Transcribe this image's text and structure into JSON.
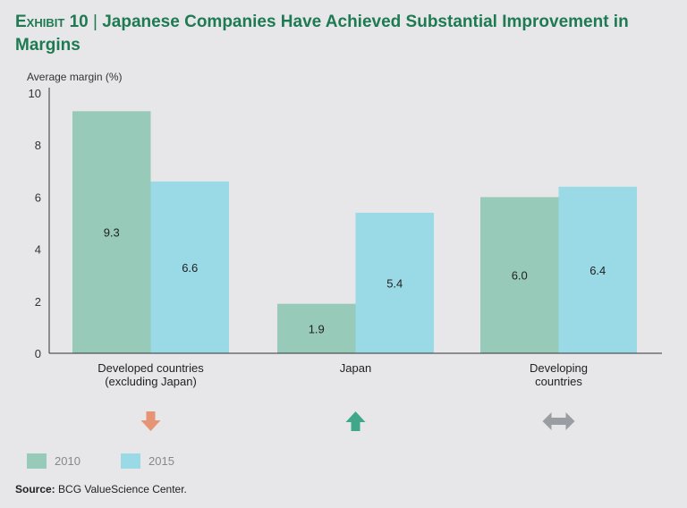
{
  "title": {
    "exhibit": "Exhibit 10",
    "separator": "|",
    "text": "Japanese Companies Have Achieved Substantial Improvement in Margins"
  },
  "source": {
    "label": "Source:",
    "text": "BCG ValueScience Center."
  },
  "colors": {
    "title": "#1d7a52",
    "s2010": "#97cab8",
    "s2015": "#9ad9e6",
    "down": "#e59575",
    "up": "#3fa88a",
    "flat": "#9a9ea3"
  },
  "chart_data": {
    "type": "bar",
    "ylabel": "Average margin (%)",
    "ylim": [
      0,
      10
    ],
    "yticks": [
      "0",
      "2",
      "4",
      "6",
      "8",
      "10"
    ],
    "categories": [
      [
        "Developed countries",
        "(excluding Japan)"
      ],
      [
        "Japan"
      ],
      [
        "Developing",
        "countries"
      ]
    ],
    "series": [
      {
        "name": "2010",
        "values": [
          9.3,
          1.9,
          6.0
        ],
        "labels": [
          "9.3",
          "1.9",
          "6.0"
        ]
      },
      {
        "name": "2015",
        "values": [
          6.6,
          5.4,
          6.4
        ],
        "labels": [
          "6.6",
          "5.4",
          "6.4"
        ]
      }
    ],
    "trend_icons": [
      "arrow-down-icon",
      "arrow-up-icon",
      "arrow-left-right-icon"
    ],
    "legend": "bottom-left",
    "grid": false
  }
}
